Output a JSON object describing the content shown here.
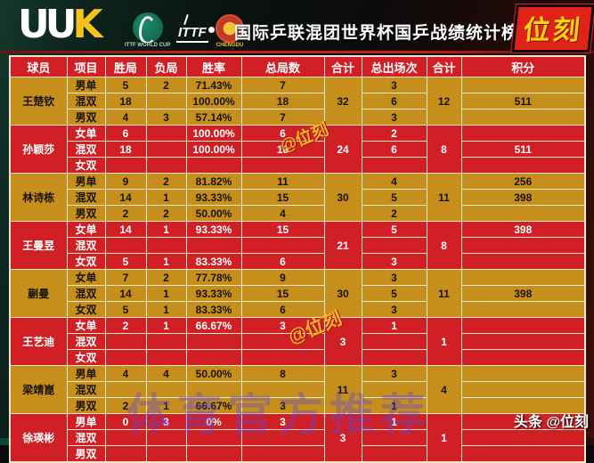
{
  "header": {
    "uuk_logo": "UUK",
    "worldcup_logo_caption": "ITTF WORLD CUP",
    "ittf_logo_text": "ITTF",
    "chengdu_logo_caption": "CHENGDU",
    "title": "国际乒联混团世界杯国乒战绩统计榜",
    "brand": "位刻"
  },
  "colors": {
    "row_gold": "#c68f1c",
    "row_red": "#d02025",
    "border": "#f5e7cb",
    "brand_yellow": "#ffd413",
    "brand_red": "#e02218"
  },
  "watermarks": {
    "wm1": "@位刻",
    "wm2": "@位刻",
    "wm_purple": "体育官方推荐"
  },
  "footer": {
    "credit": "头条 @位刻"
  },
  "table": {
    "columns": [
      "球员",
      "项目",
      "胜局",
      "负局",
      "胜率",
      "总局数",
      "合计",
      "总出场次",
      "合计",
      "积分"
    ],
    "players": [
      {
        "name": "王楚钦",
        "theme": "gold",
        "total_games": "32",
        "total_appearances": "12",
        "rows": [
          {
            "event": "男单",
            "wins": "5",
            "losses": "2",
            "rate": "71.43%",
            "games": "7",
            "appearances": "3",
            "points": ""
          },
          {
            "event": "混双",
            "wins": "18",
            "losses": "",
            "rate": "100.00%",
            "games": "18",
            "appearances": "6",
            "points": "511"
          },
          {
            "event": "男双",
            "wins": "4",
            "losses": "3",
            "rate": "57.14%",
            "games": "7",
            "appearances": "3",
            "points": ""
          }
        ]
      },
      {
        "name": "孙颖莎",
        "theme": "red",
        "total_games": "24",
        "total_appearances": "8",
        "rows": [
          {
            "event": "女单",
            "wins": "6",
            "losses": "",
            "rate": "100.00%",
            "games": "6",
            "appearances": "2",
            "points": ""
          },
          {
            "event": "混双",
            "wins": "18",
            "losses": "",
            "rate": "100.00%",
            "games": "18",
            "appearances": "6",
            "points": "511"
          },
          {
            "event": "女双",
            "wins": "",
            "losses": "",
            "rate": "",
            "games": "",
            "appearances": "",
            "points": ""
          }
        ]
      },
      {
        "name": "林诗栋",
        "theme": "gold",
        "total_games": "30",
        "total_appearances": "11",
        "rows": [
          {
            "event": "男单",
            "wins": "9",
            "losses": "2",
            "rate": "81.82%",
            "games": "11",
            "appearances": "4",
            "points": "256"
          },
          {
            "event": "混双",
            "wins": "14",
            "losses": "1",
            "rate": "93.33%",
            "games": "15",
            "appearances": "5",
            "points": "398"
          },
          {
            "event": "男双",
            "wins": "2",
            "losses": "2",
            "rate": "50.00%",
            "games": "4",
            "appearances": "2",
            "points": ""
          }
        ]
      },
      {
        "name": "王曼昱",
        "theme": "red",
        "total_games": "21",
        "total_appearances": "8",
        "rows": [
          {
            "event": "女单",
            "wins": "14",
            "losses": "1",
            "rate": "93.33%",
            "games": "15",
            "appearances": "5",
            "points": "398"
          },
          {
            "event": "混双",
            "wins": "",
            "losses": "",
            "rate": "",
            "games": "",
            "appearances": "",
            "points": ""
          },
          {
            "event": "女双",
            "wins": "5",
            "losses": "1",
            "rate": "83.33%",
            "games": "6",
            "appearances": "3",
            "points": ""
          }
        ]
      },
      {
        "name": "蒯曼",
        "theme": "gold",
        "total_games": "30",
        "total_appearances": "11",
        "rows": [
          {
            "event": "女单",
            "wins": "7",
            "losses": "2",
            "rate": "77.78%",
            "games": "9",
            "appearances": "3",
            "points": ""
          },
          {
            "event": "混双",
            "wins": "14",
            "losses": "1",
            "rate": "93.33%",
            "games": "15",
            "appearances": "5",
            "points": "398"
          },
          {
            "event": "女双",
            "wins": "5",
            "losses": "1",
            "rate": "83.33%",
            "games": "6",
            "appearances": "3",
            "points": ""
          }
        ]
      },
      {
        "name": "王艺迪",
        "theme": "red",
        "total_games": "3",
        "total_appearances": "1",
        "rows": [
          {
            "event": "女单",
            "wins": "2",
            "losses": "1",
            "rate": "66.67%",
            "games": "3",
            "appearances": "1",
            "points": ""
          },
          {
            "event": "混双",
            "wins": "",
            "losses": "",
            "rate": "",
            "games": "",
            "appearances": "",
            "points": ""
          },
          {
            "event": "女双",
            "wins": "",
            "losses": "",
            "rate": "",
            "games": "",
            "appearances": "",
            "points": ""
          }
        ]
      },
      {
        "name": "梁靖崑",
        "theme": "gold",
        "total_games": "11",
        "total_appearances": "4",
        "rows": [
          {
            "event": "男单",
            "wins": "4",
            "losses": "4",
            "rate": "50.00%",
            "games": "8",
            "appearances": "3",
            "points": ""
          },
          {
            "event": "混双",
            "wins": "",
            "losses": "",
            "rate": "",
            "games": "",
            "appearances": "",
            "points": ""
          },
          {
            "event": "男双",
            "wins": "2",
            "losses": "1",
            "rate": "66.67%",
            "games": "3",
            "appearances": "1",
            "points": ""
          }
        ]
      },
      {
        "name": "徐瑛彬",
        "theme": "red",
        "total_games": "3",
        "total_appearances": "1",
        "rows": [
          {
            "event": "男单",
            "wins": "0",
            "losses": "3",
            "rate": "0%",
            "games": "3",
            "appearances": "1",
            "points": ""
          },
          {
            "event": "混双",
            "wins": "",
            "losses": "",
            "rate": "",
            "games": "",
            "appearances": "",
            "points": ""
          },
          {
            "event": "男双",
            "wins": "",
            "losses": "",
            "rate": "",
            "games": "",
            "appearances": "",
            "points": ""
          }
        ]
      }
    ]
  },
  "chart_data": {
    "type": "table",
    "title": "国际乒联混团世界杯国乒战绩统计榜",
    "columns": [
      "球员",
      "项目",
      "胜局",
      "负局",
      "胜率",
      "总局数",
      "合计",
      "总出场次",
      "合计",
      "积分"
    ],
    "rows": [
      [
        "王楚钦",
        "男单",
        "5",
        "2",
        "71.43%",
        "7",
        "32",
        "3",
        "12",
        ""
      ],
      [
        "",
        "混双",
        "18",
        "",
        "100.00%",
        "18",
        "",
        "6",
        "",
        "511"
      ],
      [
        "",
        "男双",
        "4",
        "3",
        "57.14%",
        "7",
        "",
        "3",
        "",
        ""
      ],
      [
        "孙颖莎",
        "女单",
        "6",
        "",
        "100.00%",
        "6",
        "24",
        "2",
        "8",
        ""
      ],
      [
        "",
        "混双",
        "18",
        "",
        "100.00%",
        "18",
        "",
        "6",
        "",
        "511"
      ],
      [
        "",
        "女双",
        "",
        "",
        "",
        "",
        "",
        "",
        "",
        ""
      ],
      [
        "林诗栋",
        "男单",
        "9",
        "2",
        "81.82%",
        "11",
        "30",
        "4",
        "11",
        "256"
      ],
      [
        "",
        "混双",
        "14",
        "1",
        "93.33%",
        "15",
        "",
        "5",
        "",
        "398"
      ],
      [
        "",
        "男双",
        "2",
        "2",
        "50.00%",
        "4",
        "",
        "2",
        "",
        ""
      ],
      [
        "王曼昱",
        "女单",
        "14",
        "1",
        "93.33%",
        "15",
        "21",
        "5",
        "8",
        "398"
      ],
      [
        "",
        "混双",
        "",
        "",
        "",
        "",
        "",
        "",
        "",
        ""
      ],
      [
        "",
        "女双",
        "5",
        "1",
        "83.33%",
        "6",
        "",
        "3",
        "",
        ""
      ],
      [
        "蒯曼",
        "女单",
        "7",
        "2",
        "77.78%",
        "9",
        "30",
        "3",
        "11",
        ""
      ],
      [
        "",
        "混双",
        "14",
        "1",
        "93.33%",
        "15",
        "",
        "5",
        "",
        "398"
      ],
      [
        "",
        "女双",
        "5",
        "1",
        "83.33%",
        "6",
        "",
        "3",
        "",
        ""
      ],
      [
        "王艺迪",
        "女单",
        "2",
        "1",
        "66.67%",
        "3",
        "3",
        "1",
        "1",
        ""
      ],
      [
        "",
        "混双",
        "",
        "",
        "",
        "",
        "",
        "",
        "",
        ""
      ],
      [
        "",
        "女双",
        "",
        "",
        "",
        "",
        "",
        "",
        "",
        ""
      ],
      [
        "梁靖崑",
        "男单",
        "4",
        "4",
        "50.00%",
        "8",
        "11",
        "3",
        "4",
        ""
      ],
      [
        "",
        "混双",
        "",
        "",
        "",
        "",
        "",
        "",
        "",
        ""
      ],
      [
        "",
        "男双",
        "2",
        "1",
        "66.67%",
        "3",
        "",
        "1",
        "",
        ""
      ],
      [
        "徐瑛彬",
        "男单",
        "0",
        "3",
        "0%",
        "3",
        "3",
        "1",
        "1",
        ""
      ],
      [
        "",
        "混双",
        "",
        "",
        "",
        "",
        "",
        "",
        "",
        ""
      ],
      [
        "",
        "男双",
        "",
        "",
        "",
        "",
        "",
        "",
        "",
        ""
      ]
    ]
  }
}
